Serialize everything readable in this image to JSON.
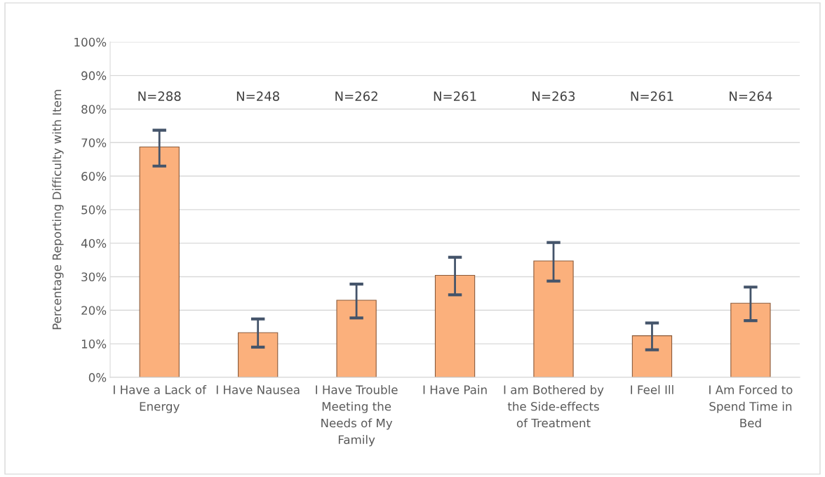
{
  "chart_data": {
    "type": "bar",
    "ylabel": "Percentage Reporting Difficulty with Item",
    "categories": [
      "I Have a Lack of Energy",
      "I Have Nausea",
      "I Have Trouble Meeting the Needs of My Family",
      "I Have Pain",
      "I am Bothered by the Side-effects of Treatment",
      "I Feel Ill",
      "I Am Forced to Spend Time in Bed"
    ],
    "values": [
      68.7,
      13.3,
      23.0,
      30.4,
      34.7,
      12.4,
      22.1
    ],
    "errors": [
      [
        63.0,
        73.7
      ],
      [
        9.0,
        17.4
      ],
      [
        17.7,
        27.8
      ],
      [
        24.6,
        35.8
      ],
      [
        28.7,
        40.2
      ],
      [
        8.2,
        16.2
      ],
      [
        16.9,
        26.9
      ]
    ],
    "color": "#fbb07c",
    "ylim": [
      0,
      100
    ],
    "yticks": [
      {
        "value": 0,
        "label": "0%"
      },
      {
        "value": 10,
        "label": "10%"
      },
      {
        "value": 20,
        "label": "20%"
      },
      {
        "value": 30,
        "label": "30%"
      },
      {
        "value": 40,
        "label": "40%"
      },
      {
        "value": 50,
        "label": "50%"
      },
      {
        "value": 60,
        "label": "60%"
      },
      {
        "value": 70,
        "label": "70%"
      },
      {
        "value": 80,
        "label": "80%"
      },
      {
        "value": 90,
        "label": "90%"
      },
      {
        "value": 100,
        "label": "100%"
      }
    ],
    "grid": "y",
    "annotations": [
      "N=288",
      "N=248",
      "N=262",
      "N=261",
      "N=263",
      "N=261",
      "N=264"
    ]
  }
}
